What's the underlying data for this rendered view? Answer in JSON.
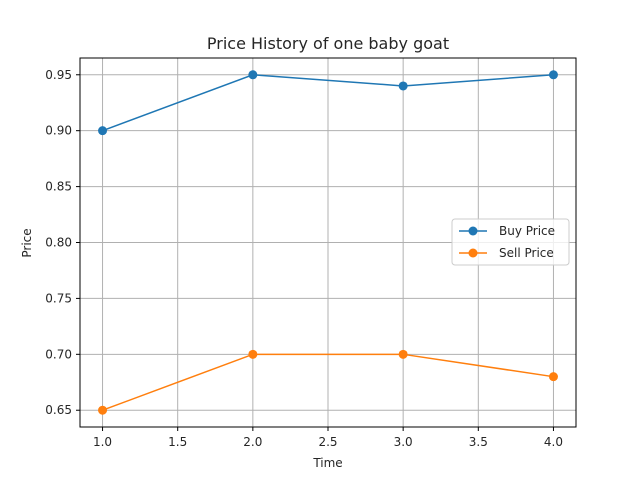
{
  "chart_data": {
    "type": "line",
    "title": "Price History of one baby goat",
    "xlabel": "Time",
    "ylabel": "Price",
    "xlim": [
      0.85,
      4.15
    ],
    "ylim": [
      0.635,
      0.965
    ],
    "xticks": [
      1.0,
      1.5,
      2.0,
      2.5,
      3.0,
      3.5,
      4.0
    ],
    "xtick_labels": [
      "1.0",
      "1.5",
      "2.0",
      "2.5",
      "3.0",
      "3.5",
      "4.0"
    ],
    "yticks": [
      0.65,
      0.7,
      0.75,
      0.8,
      0.85,
      0.9,
      0.95
    ],
    "ytick_labels": [
      "0.65",
      "0.70",
      "0.75",
      "0.80",
      "0.85",
      "0.90",
      "0.95"
    ],
    "grid": true,
    "legend_position": "center-right",
    "x": [
      1,
      2,
      3,
      4
    ],
    "series": [
      {
        "name": "Buy Price",
        "values": [
          0.9,
          0.95,
          0.94,
          0.95
        ],
        "color": "#1f77b4",
        "marker": "circle"
      },
      {
        "name": "Sell Price",
        "values": [
          0.65,
          0.7,
          0.7,
          0.68
        ],
        "color": "#ff7f0e",
        "marker": "circle"
      }
    ]
  }
}
